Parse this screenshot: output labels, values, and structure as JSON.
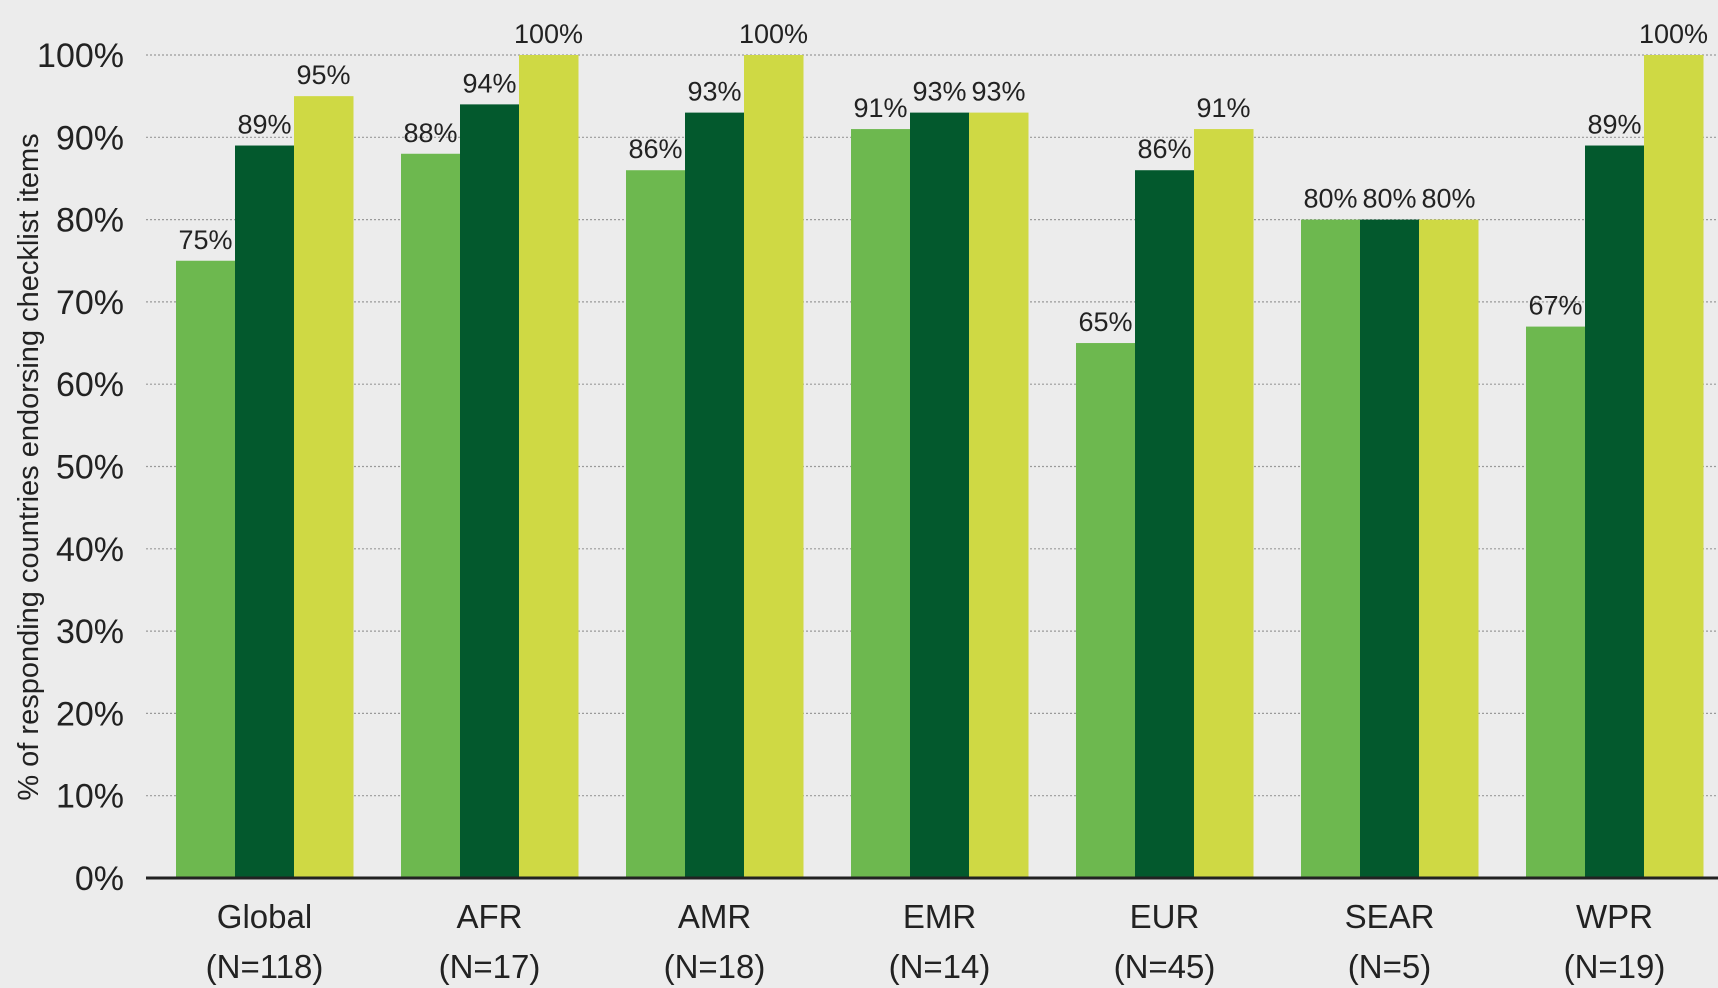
{
  "chart_data": {
    "type": "bar",
    "ylabel": "% of responding countries endorsing checklist items",
    "ylim": [
      0,
      100
    ],
    "y_ticks": [
      "0%",
      "10%",
      "20%",
      "30%",
      "40%",
      "50%",
      "60%",
      "70%",
      "80%",
      "90%",
      "100%"
    ],
    "grid": "horizontal dotted",
    "categories": [
      {
        "name": "Global",
        "n": "(N=118)"
      },
      {
        "name": "AFR",
        "n": "(N=17)"
      },
      {
        "name": "AMR",
        "n": "(N=18)"
      },
      {
        "name": "EMR",
        "n": "(N=14)"
      },
      {
        "name": "EUR",
        "n": "(N=45)"
      },
      {
        "name": "SEAR",
        "n": "(N=5)"
      },
      {
        "name": "WPR",
        "n": "(N=19)"
      }
    ],
    "series": [
      {
        "color": "#6db84f",
        "values": [
          75,
          88,
          86,
          91,
          65,
          80,
          67
        ],
        "labels": [
          "75%",
          "88%",
          "86%",
          "91%",
          "65%",
          "80%",
          "67%"
        ]
      },
      {
        "color": "#03592d",
        "values": [
          89,
          94,
          93,
          93,
          86,
          80,
          89
        ],
        "labels": [
          "89%",
          "94%",
          "93%",
          "93%",
          "86%",
          "80%",
          "89%"
        ]
      },
      {
        "color": "#cfd944",
        "values": [
          95,
          100,
          100,
          93,
          91,
          80,
          100
        ],
        "labels": [
          "95%",
          "100%",
          "100%",
          "93%",
          "91%",
          "80%",
          "100%"
        ]
      }
    ]
  }
}
